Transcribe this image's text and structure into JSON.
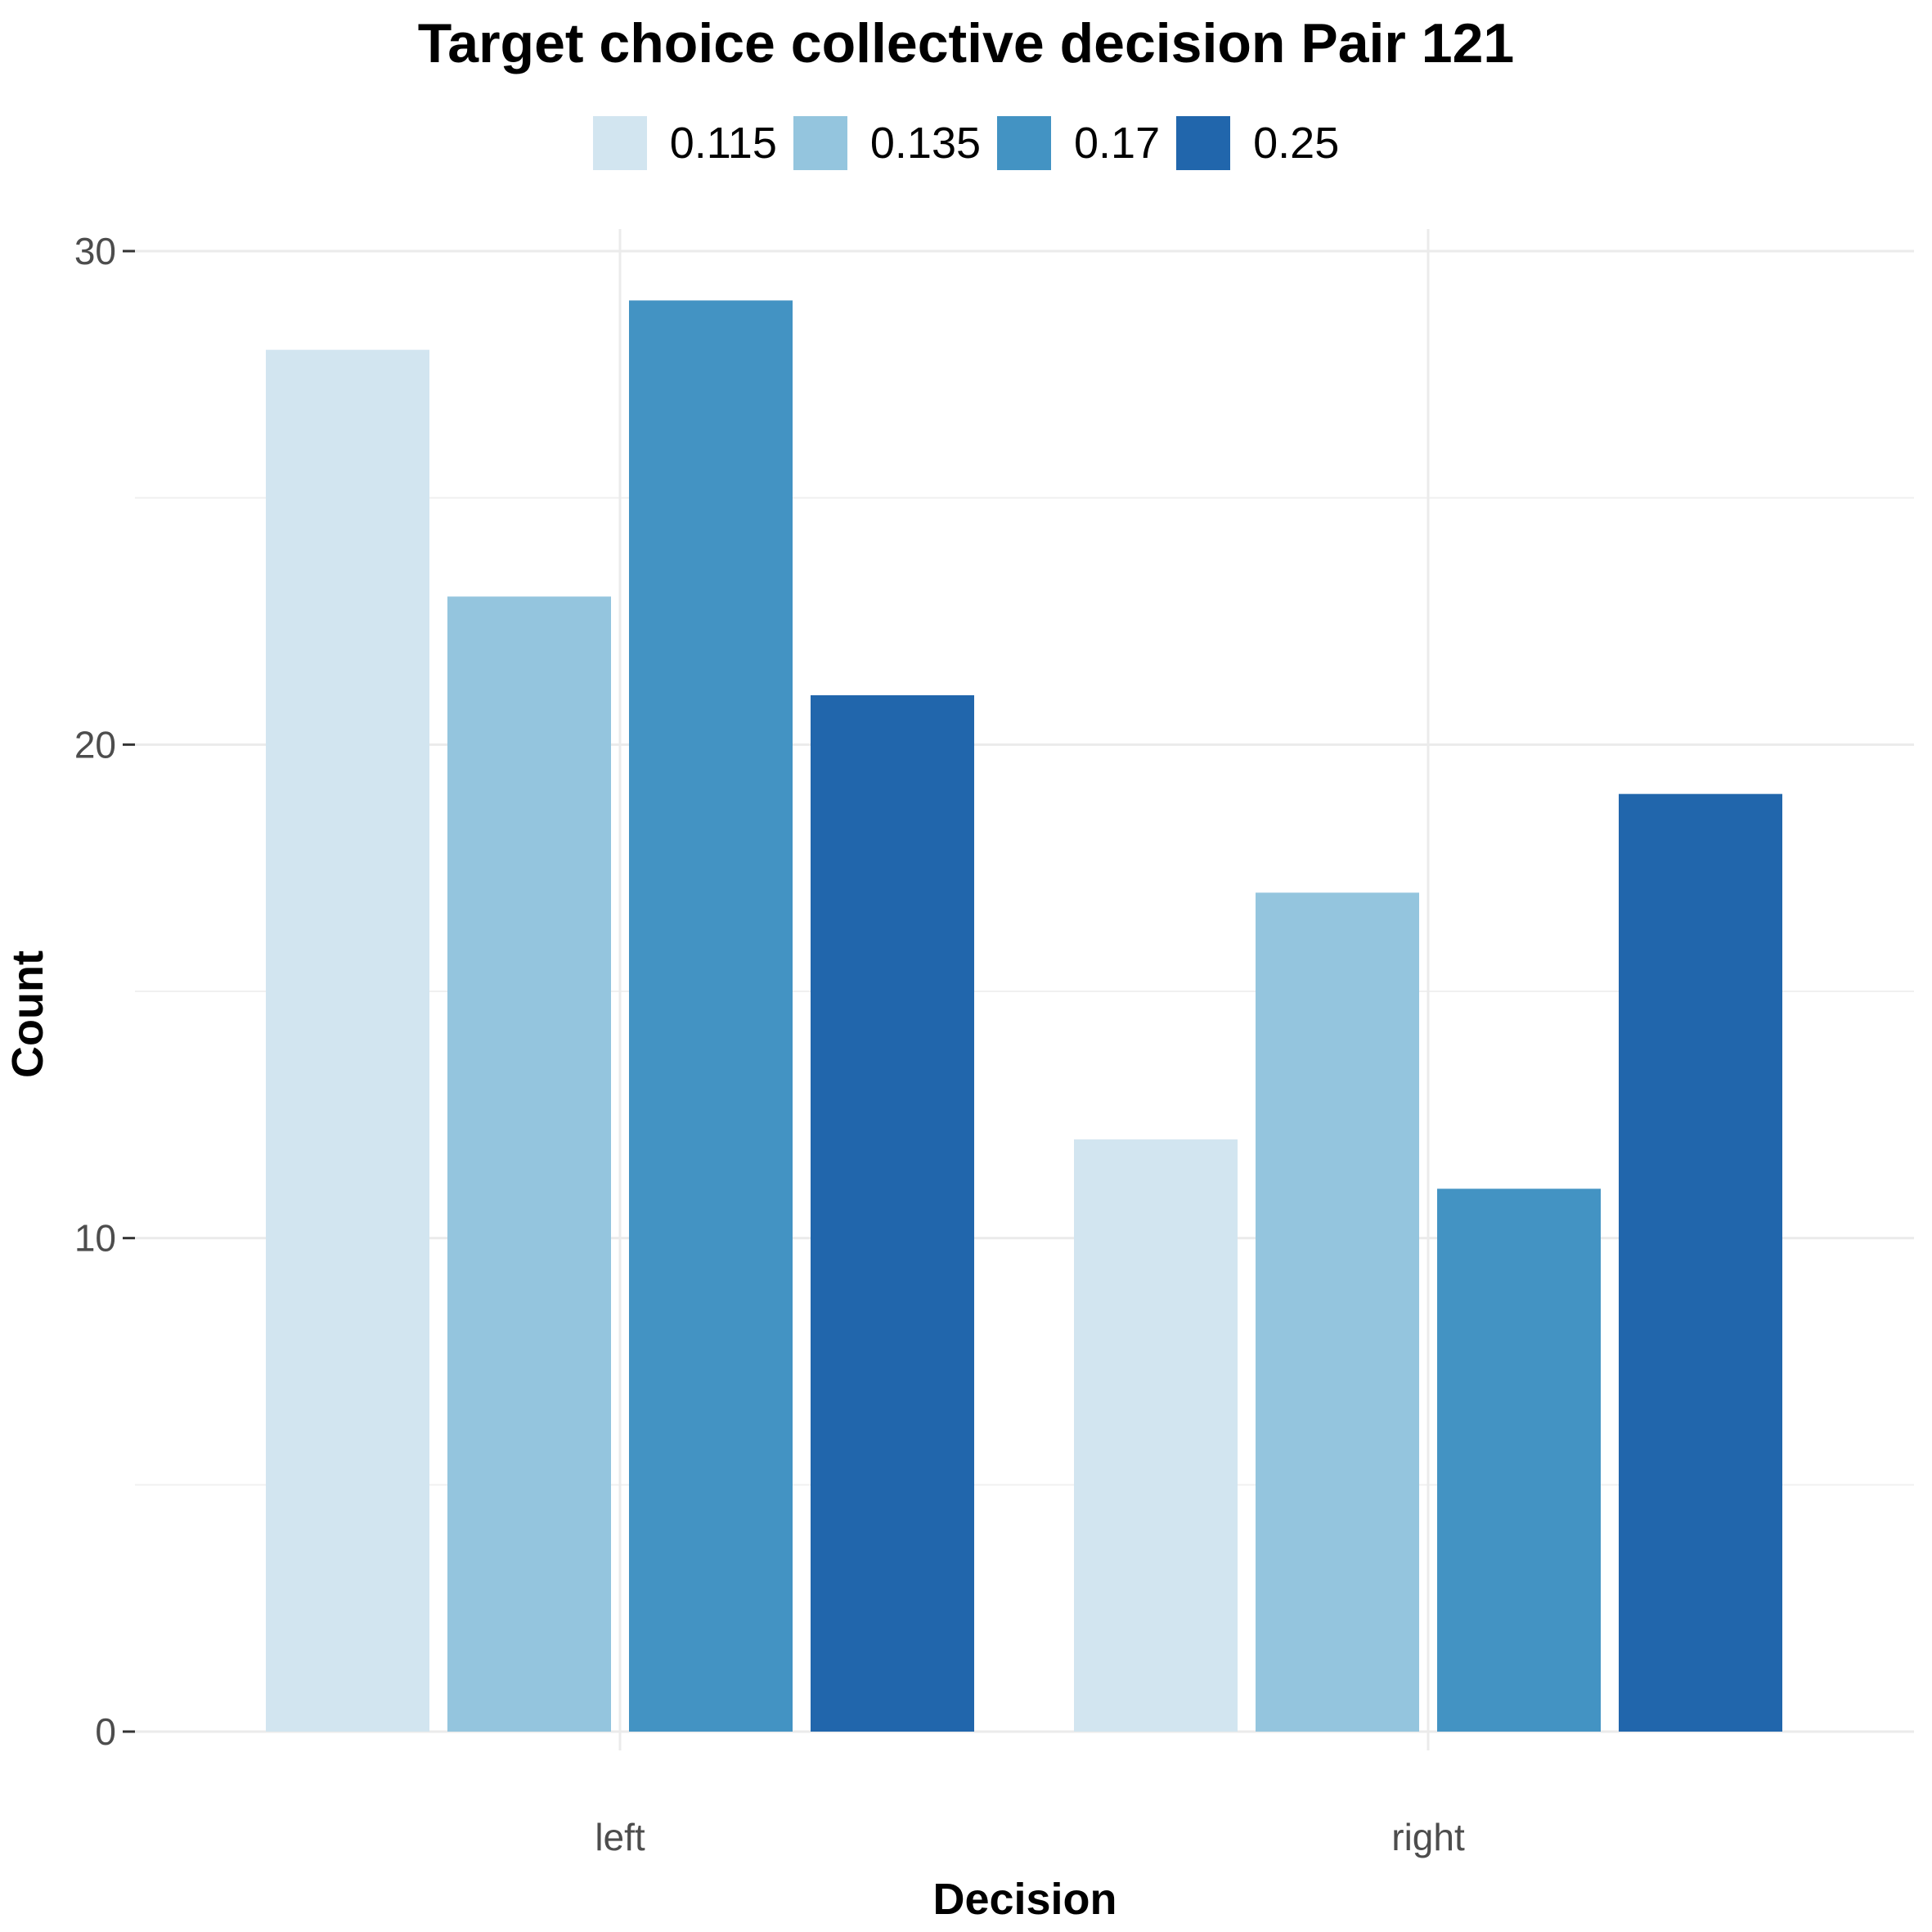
{
  "chart_data": {
    "type": "bar",
    "title": "Target choice collective decision Pair 121",
    "xlabel": "Decision",
    "ylabel": "Count",
    "categories": [
      "left",
      "right"
    ],
    "series": [
      {
        "name": "0.115",
        "color": "#D2E5F0",
        "values": [
          28,
          12
        ]
      },
      {
        "name": "0.135",
        "color": "#94C5DE",
        "values": [
          23,
          17
        ]
      },
      {
        "name": "0.17",
        "color": "#4393C3",
        "values": [
          29,
          11
        ]
      },
      {
        "name": "0.25",
        "color": "#2166AC",
        "values": [
          21,
          19
        ]
      }
    ],
    "ylim": [
      0,
      30
    ],
    "y_ticks": [
      "0",
      "10",
      "20",
      "30"
    ],
    "grid": true,
    "legend_position": "top"
  }
}
